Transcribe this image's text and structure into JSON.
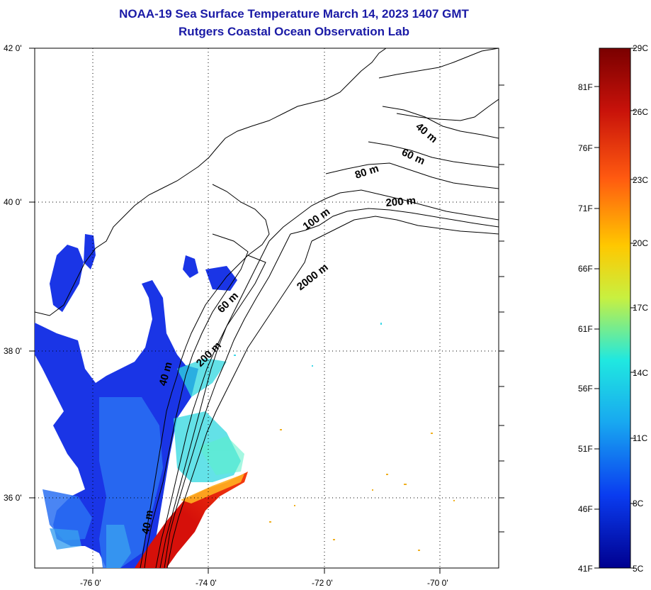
{
  "header": {
    "title": "NOAA-19 Sea Surface Temperature March 14, 2023 1407 GMT",
    "subtitle": "Rutgers Coastal Ocean Observation Lab"
  },
  "map": {
    "lat_labels": [
      "42 0'",
      "40 0'",
      "38 0'",
      "36 0'"
    ],
    "lon_labels": [
      "-76 0'",
      "-74 0'",
      "-72 0'",
      "-70 0'"
    ],
    "grid": "dotted",
    "depth_labels": [
      "40 m",
      "60 m",
      "80 m",
      "200 m",
      "100 m",
      "2000 m",
      "60 m",
      "200 m",
      "40 m",
      "40 m"
    ]
  },
  "colorbar": {
    "celsius_labels": [
      "29C",
      "26C",
      "23C",
      "20C",
      "17C",
      "14C",
      "11C",
      "8C",
      "5C"
    ],
    "fahrenheit_labels": [
      "81F",
      "76F",
      "71F",
      "66F",
      "61F",
      "56F",
      "51F",
      "46F",
      "41F"
    ],
    "colors": [
      "#7a0000",
      "#d11a0a",
      "#ff6a10",
      "#ffd200",
      "#b8f040",
      "#20e8e0",
      "#18a0ee",
      "#0a3cf0",
      "#00008f"
    ]
  }
}
